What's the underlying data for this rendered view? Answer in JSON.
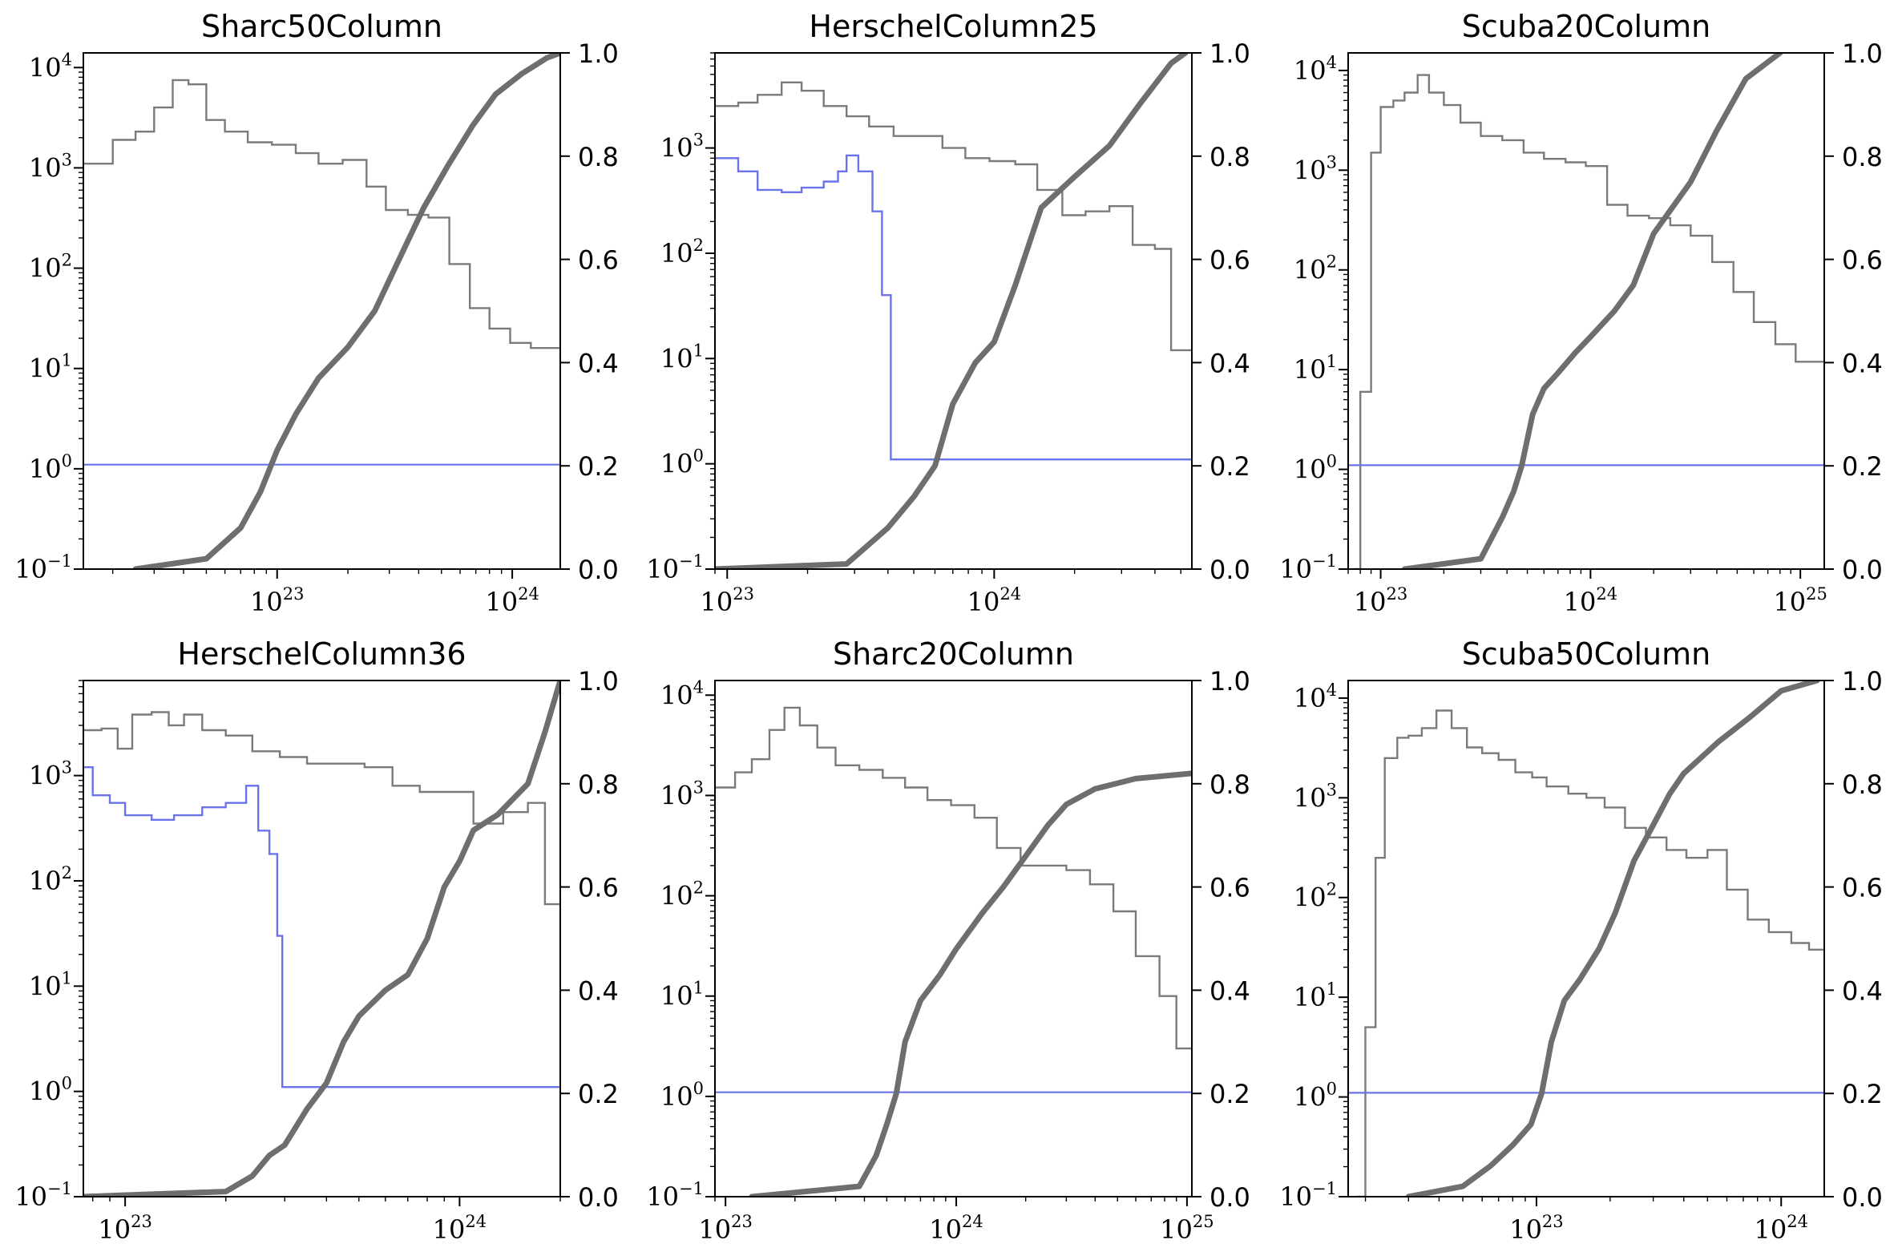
{
  "chart_data": [
    {
      "type": "line",
      "title": "Sharc50Column",
      "xscale": "log",
      "yscale_left": "log",
      "xlim": [
        1.5e+22,
        1.6e+24
      ],
      "ylim_left": [
        0.1,
        14000
      ],
      "ylim_right": [
        0,
        1
      ],
      "xticks": [
        {
          "base": "10",
          "exp": "23"
        },
        {
          "base": "10",
          "exp": "24"
        }
      ],
      "yticks_left": [
        {
          "base": "10",
          "exp": "−1"
        },
        {
          "base": "10",
          "exp": "0"
        },
        {
          "base": "10",
          "exp": "1"
        },
        {
          "base": "10",
          "exp": "2"
        },
        {
          "base": "10",
          "exp": "3"
        },
        {
          "base": "10",
          "exp": "4"
        }
      ],
      "yticks_right": [
        "0.0",
        "0.2",
        "0.4",
        "0.6",
        "0.8",
        "1.0"
      ],
      "series": [
        {
          "style": "histogram",
          "color": "#7a7a7a",
          "x": [
            1.5e+22,
            2e+22,
            2.5e+22,
            3e+22,
            3.6e+22,
            4.2e+22,
            5e+22,
            6e+22,
            7.5e+22,
            9.5e+22,
            1.2e+23,
            1.5e+23,
            1.9e+23,
            2.4e+23,
            2.9e+23,
            3.6e+23,
            4.4e+23,
            5.4e+23,
            6.6e+23,
            8e+23,
            9.8e+23,
            1.2e+24,
            1.6e+24
          ],
          "y": [
            1100,
            1900,
            2300,
            4000,
            7500,
            6800,
            3000,
            2300,
            1800,
            1700,
            1400,
            1100,
            1200,
            650,
            380,
            340,
            320,
            110,
            40,
            25,
            18,
            16,
            6
          ]
        },
        {
          "style": "line",
          "color": "#6a73ea",
          "x": [
            1.5e+22,
            1.6e+24
          ],
          "y": [
            1.1,
            1.1
          ]
        },
        {
          "style": "cdf",
          "color": "#6e6e6e",
          "x": [
            2.5e+22,
            5e+22,
            7e+22,
            8.5e+22,
            1e+23,
            1.2e+23,
            1.5e+23,
            2e+23,
            2.6e+23,
            3.3e+23,
            4.2e+23,
            5.3e+23,
            6.8e+23,
            8.5e+23,
            1.1e+24,
            1.4e+24,
            1.6e+24
          ],
          "y": [
            0,
            0.02,
            0.08,
            0.15,
            0.23,
            0.3,
            0.37,
            0.43,
            0.5,
            0.6,
            0.7,
            0.78,
            0.86,
            0.92,
            0.96,
            0.99,
            1.0
          ]
        }
      ]
    },
    {
      "type": "line",
      "title": "HerschelColumn25",
      "xscale": "log",
      "yscale_left": "log",
      "xlim": [
        9e+22,
        5.5e+24
      ],
      "ylim_left": [
        0.1,
        8000
      ],
      "ylim_right": [
        0,
        1
      ],
      "xticks": [
        {
          "base": "10",
          "exp": "23"
        },
        {
          "base": "10",
          "exp": "24"
        }
      ],
      "yticks_left": [
        {
          "base": "10",
          "exp": "−1"
        },
        {
          "base": "10",
          "exp": "0"
        },
        {
          "base": "10",
          "exp": "1"
        },
        {
          "base": "10",
          "exp": "2"
        },
        {
          "base": "10",
          "exp": "3"
        }
      ],
      "yticks_right": [
        "0.0",
        "0.2",
        "0.4",
        "0.6",
        "0.8",
        "1.0"
      ],
      "series": [
        {
          "style": "histogram",
          "color": "#7a7a7a",
          "x": [
            9e+22,
            1.1e+23,
            1.3e+23,
            1.6e+23,
            1.9e+23,
            2.3e+23,
            2.8e+23,
            3.4e+23,
            4.2e+23,
            5.2e+23,
            6.4e+23,
            7.8e+23,
            9.6e+23,
            1.2e+24,
            1.45e+24,
            1.8e+24,
            2.2e+24,
            2.7e+24,
            3.3e+24,
            4e+24,
            4.6e+24,
            5.5e+24
          ],
          "y": [
            2500,
            2700,
            3200,
            4200,
            3500,
            2500,
            2000,
            1600,
            1300,
            1300,
            1000,
            800,
            750,
            700,
            400,
            230,
            250,
            280,
            120,
            110,
            12,
            3
          ]
        },
        {
          "style": "histogram",
          "color": "#6a73ea",
          "x": [
            9e+22,
            1.1e+23,
            1.3e+23,
            1.6e+23,
            1.9e+23,
            2.3e+23,
            2.6e+23,
            2.8e+23,
            3.1e+23,
            3.5e+23,
            3.8e+23,
            4.1e+23,
            4.4e+23,
            5.5e+24
          ],
          "y": [
            800,
            600,
            400,
            380,
            420,
            480,
            600,
            850,
            600,
            250,
            40,
            1.1,
            1.1,
            1.1
          ]
        },
        {
          "style": "cdf",
          "color": "#6e6e6e",
          "x": [
            9e+22,
            2.8e+23,
            4e+23,
            5e+23,
            6e+23,
            7e+23,
            8.5e+23,
            1e+24,
            1.2e+24,
            1.5e+24,
            2e+24,
            2.7e+24,
            3.5e+24,
            4.6e+24,
            5.2e+24
          ],
          "y": [
            0,
            0.01,
            0.08,
            0.14,
            0.2,
            0.32,
            0.4,
            0.44,
            0.55,
            0.7,
            0.76,
            0.82,
            0.9,
            0.98,
            1.0
          ]
        }
      ]
    },
    {
      "type": "line",
      "title": "Scuba20Column",
      "xscale": "log",
      "yscale_left": "log",
      "xlim": [
        7e+22,
        1.3e+25
      ],
      "ylim_left": [
        0.1,
        15000
      ],
      "ylim_right": [
        0,
        1
      ],
      "xticks": [
        {
          "base": "10",
          "exp": "23"
        },
        {
          "base": "10",
          "exp": "24"
        },
        {
          "base": "10",
          "exp": "25"
        }
      ],
      "yticks_left": [
        {
          "base": "10",
          "exp": "−1"
        },
        {
          "base": "10",
          "exp": "0"
        },
        {
          "base": "10",
          "exp": "1"
        },
        {
          "base": "10",
          "exp": "2"
        },
        {
          "base": "10",
          "exp": "3"
        },
        {
          "base": "10",
          "exp": "4"
        }
      ],
      "yticks_right": [
        "0.0",
        "0.2",
        "0.4",
        "0.6",
        "0.8",
        "1.0"
      ],
      "series": [
        {
          "style": "histogram",
          "color": "#7a7a7a",
          "x": [
            7.5e+22,
            8e+22,
            9e+22,
            1e+23,
            1.15e+23,
            1.3e+23,
            1.5e+23,
            1.7e+23,
            2e+23,
            2.4e+23,
            3e+23,
            3.8e+23,
            4.8e+23,
            6e+23,
            7.6e+23,
            9.5e+23,
            1.2e+24,
            1.5e+24,
            1.9e+24,
            2.4e+24,
            3e+24,
            3.8e+24,
            4.8e+24,
            6e+24,
            7.6e+24,
            9.5e+24,
            1.3e+25
          ],
          "y": [
            0.1,
            6,
            1500,
            4300,
            5000,
            6000,
            9000,
            6000,
            4500,
            3000,
            2200,
            2000,
            1500,
            1300,
            1200,
            1100,
            450,
            350,
            330,
            280,
            220,
            120,
            60,
            30,
            18,
            12,
            2
          ]
        },
        {
          "style": "line",
          "color": "#6a73ea",
          "x": [
            7e+22,
            1.3e+25
          ],
          "y": [
            1.1,
            1.1
          ]
        },
        {
          "style": "cdf",
          "color": "#6e6e6e",
          "x": [
            1.3e+23,
            3e+23,
            3.8e+23,
            4.3e+23,
            4.7e+23,
            5.3e+23,
            6e+23,
            7e+23,
            8.5e+23,
            1e+24,
            1.3e+24,
            1.6e+24,
            2e+24,
            3e+24,
            4e+24,
            5.5e+24,
            8e+24
          ],
          "y": [
            0,
            0.02,
            0.1,
            0.15,
            0.2,
            0.3,
            0.35,
            0.38,
            0.42,
            0.45,
            0.5,
            0.55,
            0.65,
            0.75,
            0.85,
            0.95,
            1.0
          ]
        }
      ]
    },
    {
      "type": "line",
      "title": "HerschelColumn36",
      "xscale": "log",
      "yscale_left": "log",
      "xlim": [
        7.5e+22,
        2e+24
      ],
      "ylim_left": [
        0.1,
        8000
      ],
      "ylim_right": [
        0,
        1
      ],
      "xticks": [
        {
          "base": "10",
          "exp": "23"
        },
        {
          "base": "10",
          "exp": "24"
        }
      ],
      "yticks_left": [
        {
          "base": "10",
          "exp": "−1"
        },
        {
          "base": "10",
          "exp": "0"
        },
        {
          "base": "10",
          "exp": "1"
        },
        {
          "base": "10",
          "exp": "2"
        },
        {
          "base": "10",
          "exp": "3"
        }
      ],
      "yticks_right": [
        "0.0",
        "0.2",
        "0.4",
        "0.6",
        "0.8",
        "1.0"
      ],
      "series": [
        {
          "style": "histogram",
          "color": "#7a7a7a",
          "x": [
            7.5e+22,
            8.5e+22,
            9.5e+22,
            1.05e+23,
            1.2e+23,
            1.35e+23,
            1.5e+23,
            1.7e+23,
            2e+23,
            2.4e+23,
            2.9e+23,
            3.5e+23,
            4.3e+23,
            5.2e+23,
            6.3e+23,
            7.6e+23,
            9.2e+23,
            1.1e+24,
            1.35e+24,
            1.6e+24,
            1.8e+24,
            2e+24
          ],
          "y": [
            2700,
            2800,
            1800,
            3800,
            4000,
            3000,
            3800,
            2700,
            2400,
            1700,
            1500,
            1300,
            1300,
            1200,
            800,
            700,
            700,
            350,
            450,
            550,
            60,
            18
          ]
        },
        {
          "style": "histogram",
          "color": "#6a73ea",
          "x": [
            7.5e+22,
            8e+22,
            9e+22,
            1e+23,
            1.2e+23,
            1.4e+23,
            1.7e+23,
            2e+23,
            2.3e+23,
            2.5e+23,
            2.7e+23,
            2.85e+23,
            2.95e+23,
            2e+24
          ],
          "y": [
            1200,
            650,
            550,
            420,
            380,
            420,
            500,
            550,
            800,
            300,
            180,
            30,
            1.1,
            1.1
          ]
        },
        {
          "style": "cdf",
          "color": "#6e6e6e",
          "x": [
            7.5e+22,
            2e+23,
            2.4e+23,
            2.7e+23,
            3e+23,
            3.5e+23,
            4e+23,
            4.5e+23,
            5e+23,
            6e+23,
            7e+23,
            8e+23,
            9e+23,
            1e+24,
            1.1e+24,
            1.3e+24,
            1.6e+24,
            1.8e+24,
            2e+24
          ],
          "y": [
            0,
            0.01,
            0.04,
            0.08,
            0.1,
            0.17,
            0.22,
            0.3,
            0.35,
            0.4,
            0.43,
            0.5,
            0.6,
            0.65,
            0.71,
            0.74,
            0.8,
            0.9,
            1.0
          ]
        }
      ]
    },
    {
      "type": "line",
      "title": "Sharc20Column",
      "xscale": "log",
      "yscale_left": "log",
      "xlim": [
        9e+22,
        1.05e+25
      ],
      "ylim_left": [
        0.1,
        14000
      ],
      "ylim_right": [
        0,
        1
      ],
      "xticks": [
        {
          "base": "10",
          "exp": "23"
        },
        {
          "base": "10",
          "exp": "24"
        },
        {
          "base": "10",
          "exp": "25"
        }
      ],
      "yticks_left": [
        {
          "base": "10",
          "exp": "−1"
        },
        {
          "base": "10",
          "exp": "0"
        },
        {
          "base": "10",
          "exp": "1"
        },
        {
          "base": "10",
          "exp": "2"
        },
        {
          "base": "10",
          "exp": "3"
        },
        {
          "base": "10",
          "exp": "4"
        }
      ],
      "yticks_right": [
        "0.0",
        "0.2",
        "0.4",
        "0.6",
        "0.8",
        "1.0"
      ],
      "series": [
        {
          "style": "histogram",
          "color": "#7a7a7a",
          "x": [
            9e+22,
            1.1e+23,
            1.3e+23,
            1.55e+23,
            1.8e+23,
            2.1e+23,
            2.5e+23,
            3e+23,
            3.8e+23,
            4.8e+23,
            6e+23,
            7.5e+23,
            9.5e+23,
            1.2e+24,
            1.5e+24,
            1.9e+24,
            2.4e+24,
            3e+24,
            3.8e+24,
            4.8e+24,
            6e+24,
            7.6e+24,
            9e+24,
            1.05e+25
          ],
          "y": [
            1200,
            1700,
            2300,
            4500,
            7500,
            5000,
            3000,
            2000,
            1800,
            1500,
            1200,
            900,
            800,
            600,
            300,
            200,
            200,
            180,
            130,
            70,
            25,
            10,
            3,
            2
          ]
        },
        {
          "style": "line",
          "color": "#6a73ea",
          "x": [
            9e+22,
            1.05e+25
          ],
          "y": [
            1.1,
            1.1
          ]
        },
        {
          "style": "cdf",
          "color": "#6e6e6e",
          "x": [
            1.3e+23,
            3.8e+23,
            4.5e+23,
            5e+23,
            5.5e+23,
            6e+23,
            7e+23,
            8.5e+23,
            1e+24,
            1.3e+24,
            1.6e+24,
            2e+24,
            2.5e+24,
            3e+24,
            4e+24,
            6e+24,
            1.05e+25
          ],
          "y": [
            0,
            0.02,
            0.08,
            0.14,
            0.2,
            0.3,
            0.38,
            0.43,
            0.48,
            0.55,
            0.6,
            0.66,
            0.72,
            0.76,
            0.79,
            0.81,
            0.82
          ]
        }
      ]
    },
    {
      "type": "line",
      "title": "Scuba50Column",
      "xscale": "log",
      "yscale_left": "log",
      "xlim": [
        1.7e+22,
        1.5e+24
      ],
      "ylim_left": [
        0.1,
        15000
      ],
      "ylim_right": [
        0,
        1
      ],
      "xticks": [
        {
          "base": "10",
          "exp": "23"
        },
        {
          "base": "10",
          "exp": "24"
        }
      ],
      "yticks_left": [
        {
          "base": "10",
          "exp": "−1"
        },
        {
          "base": "10",
          "exp": "0"
        },
        {
          "base": "10",
          "exp": "1"
        },
        {
          "base": "10",
          "exp": "2"
        },
        {
          "base": "10",
          "exp": "3"
        },
        {
          "base": "10",
          "exp": "4"
        }
      ],
      "yticks_right": [
        "0.0",
        "0.2",
        "0.4",
        "0.6",
        "0.8",
        "1.0"
      ],
      "series": [
        {
          "style": "histogram",
          "color": "#7a7a7a",
          "x": [
            1.85e+22,
            2e+22,
            2.2e+22,
            2.4e+22,
            2.7e+22,
            3e+22,
            3.4e+22,
            3.9e+22,
            4.5e+22,
            5.2e+22,
            6e+22,
            7e+22,
            8.2e+22,
            9.6e+22,
            1.1e+23,
            1.35e+23,
            1.6e+23,
            1.9e+23,
            2.3e+23,
            2.8e+23,
            3.4e+23,
            4.1e+23,
            5e+23,
            6e+23,
            7.3e+23,
            8.9e+23,
            1.1e+24,
            1.3e+24,
            1.5e+24
          ],
          "y": [
            0.1,
            5,
            250,
            2500,
            4000,
            4200,
            5000,
            7500,
            5000,
            3200,
            2800,
            2400,
            1800,
            1600,
            1300,
            1100,
            1000,
            800,
            500,
            400,
            300,
            250,
            300,
            120,
            60,
            45,
            35,
            30,
            25
          ]
        },
        {
          "style": "line",
          "color": "#6a73ea",
          "x": [
            1.7e+22,
            1.5e+24
          ],
          "y": [
            1.1,
            1.1
          ]
        },
        {
          "style": "cdf",
          "color": "#6e6e6e",
          "x": [
            3e+22,
            5e+22,
            6.5e+22,
            8e+22,
            9.5e+22,
            1.05e+23,
            1.15e+23,
            1.3e+23,
            1.5e+23,
            1.8e+23,
            2.1e+23,
            2.5e+23,
            3e+23,
            3.5e+23,
            4e+23,
            5.5e+23,
            7.5e+23,
            1e+24,
            1.4e+24
          ],
          "y": [
            0,
            0.02,
            0.06,
            0.1,
            0.14,
            0.2,
            0.3,
            0.38,
            0.42,
            0.48,
            0.55,
            0.65,
            0.72,
            0.78,
            0.82,
            0.88,
            0.93,
            0.98,
            1.0
          ]
        }
      ]
    }
  ]
}
